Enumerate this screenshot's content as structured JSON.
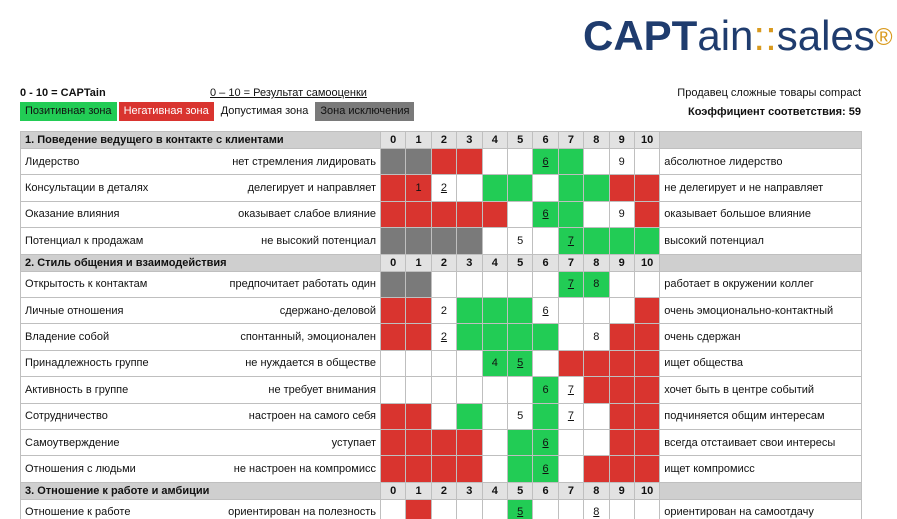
{
  "logo": {
    "cap": "CAPT",
    "ain": "ain",
    "sep": "::",
    "sales": "sales",
    "reg": "®"
  },
  "header": {
    "scale_note": "0 - 10 = CAPTain",
    "self_note": "0 – 10 = Результат самооценки",
    "profile": "Продавец сложные товары compact",
    "coefficient": "Коэффициент соответствия: 59"
  },
  "legend": {
    "positive": "Позитивная зона",
    "negative": "Негативная зона",
    "acceptable": "Допустимая зона",
    "exclusion": "Зона исключения"
  },
  "colors": {
    "positive": "#22cc55",
    "negative": "#d9342f",
    "acceptable": "#ffffff",
    "exclusion": "#7a7a7a"
  },
  "scale": [
    "0",
    "1",
    "2",
    "3",
    "4",
    "5",
    "6",
    "7",
    "8",
    "9",
    "10"
  ],
  "sections": [
    {
      "title": "1. Поведение ведущего в контакте с клиентами",
      "rows": [
        {
          "label": "Лидерство",
          "left": "нет стремления лидировать",
          "right": "абсолютное лидерство",
          "zones": "xxrrwwggwww",
          "marks": [
            {
              "i": 6,
              "t": "6",
              "u": true
            },
            {
              "i": 9,
              "t": "9",
              "u": false
            }
          ]
        },
        {
          "label": "Консультации в деталях",
          "left": "делегирует и направляет",
          "right": "не делегирует и не направляет",
          "zones": "rrwwggwggrr",
          "marks": [
            {
              "i": 1,
              "t": "1",
              "u": false
            },
            {
              "i": 2,
              "t": "2",
              "u": true
            }
          ]
        },
        {
          "label": "Оказание влияния",
          "left": "оказывает слабое влияние",
          "right": "оказывает большое влияние",
          "zones": "rrrrrwggwwr",
          "marks": [
            {
              "i": 6,
              "t": "6",
              "u": true
            },
            {
              "i": 9,
              "t": "9",
              "u": false
            }
          ]
        },
        {
          "label": "Потенциал к продажам",
          "left": "не высокий потенциал",
          "right": "высокий потенциал",
          "zones": "xxxxwwwgggg",
          "marks": [
            {
              "i": 5,
              "t": "5",
              "u": false
            },
            {
              "i": 7,
              "t": "7",
              "u": true
            }
          ]
        }
      ]
    },
    {
      "title": "2. Стиль общения и взаимодействия",
      "rows": [
        {
          "label": "Открытость к контактам",
          "left": "предпочитает работать один",
          "right": "работает в окружении коллег",
          "zones": "xxwwwwwggww",
          "marks": [
            {
              "i": 7,
              "t": "7",
              "u": true
            },
            {
              "i": 8,
              "t": "8",
              "u": false
            }
          ]
        },
        {
          "label": "Личные отношения",
          "left": "сдержано-деловой",
          "right": "очень эмоционально-контактный",
          "zones": "rrwgggwwwwr",
          "marks": [
            {
              "i": 2,
              "t": "2",
              "u": false
            },
            {
              "i": 6,
              "t": "6",
              "u": true
            }
          ]
        },
        {
          "label": "Владение собой",
          "left": "спонтанный, эмоционален",
          "right": "очень сдержан",
          "zones": "rrwggggwwrr",
          "marks": [
            {
              "i": 2,
              "t": "2",
              "u": true
            },
            {
              "i": 8,
              "t": "8",
              "u": false
            }
          ]
        },
        {
          "label": "Принадлежность группе",
          "left": "не нуждается в обществе",
          "right": "ищет общества",
          "zones": "wwwwggwrrrr",
          "marks": [
            {
              "i": 4,
              "t": "4",
              "u": false
            },
            {
              "i": 5,
              "t": "5",
              "u": true
            }
          ]
        },
        {
          "label": "Активность в группе",
          "left": "не требует внимания",
          "right": "хочет быть в центре событий",
          "zones": "wwwwwwgwrrr",
          "marks": [
            {
              "i": 6,
              "t": "6",
              "u": false
            },
            {
              "i": 7,
              "t": "7",
              "u": true
            }
          ]
        },
        {
          "label": "Сотрудничество",
          "left": "настроен на самого себя",
          "right": "подчиняется общим интересам",
          "zones": "rrwgwwgwwrr",
          "marks": [
            {
              "i": 5,
              "t": "5",
              "u": false
            },
            {
              "i": 7,
              "t": "7",
              "u": true
            }
          ]
        },
        {
          "label": "Самоутверждение",
          "left": "уступает",
          "right": "всегда отстаивает свои интересы",
          "zones": "rrrrwggwwrr",
          "marks": [
            {
              "i": 6,
              "t": "6",
              "u": true
            }
          ]
        },
        {
          "label": "Отношения с людьми",
          "left": "не настроен на компромисс",
          "right": "ищет компромисс",
          "zones": "rrrrwggwrrr",
          "marks": [
            {
              "i": 6,
              "t": "6",
              "u": true
            }
          ]
        }
      ]
    },
    {
      "title": "3. Отношение к работе и амбиции",
      "rows": [
        {
          "label": "Отношение к работе",
          "left": "ориентирован на полезность",
          "right": "ориентирован на самоотдачу",
          "zones": "wrwwwgwwwww",
          "marks": [
            {
              "i": 5,
              "t": "5",
              "u": true
            },
            {
              "i": 8,
              "t": "8",
              "u": true
            }
          ]
        }
      ]
    }
  ]
}
